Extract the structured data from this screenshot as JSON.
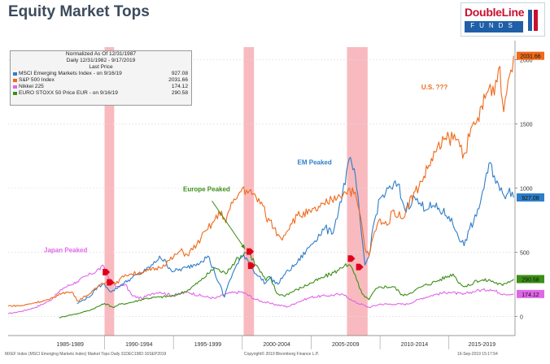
{
  "page_title": "Equity Market Tops",
  "logo": {
    "name": "DoubleLine",
    "tagline": "FUNDS"
  },
  "legend": {
    "header_lines": [
      "Normalized As Of 12/31/1987",
      "Daily 12/31/1982 - 9/17/2019",
      "Last Price"
    ],
    "items": [
      {
        "label": "MSCI Emerging Markets Index -  on 9/16/19",
        "value": "927.08",
        "color": "#2e7dc8"
      },
      {
        "label": "S&P 500 Index",
        "value": "2031.66",
        "color": "#ef6a1b"
      },
      {
        "label": "Nikkei 225",
        "value": "174.12",
        "color": "#e066e8"
      },
      {
        "label": "EURO STOXX 50 Price EUR -  on 9/16/19",
        "value": "290.58",
        "color": "#3b8f16"
      }
    ]
  },
  "footer": {
    "left": "MXEF Index (MSCI Emerging Markets Index) Market Tops  Daily 31DEC1982-16SEP2019",
    "center": "Copyright© 2019 Bloomberg Finance L.P.",
    "right": "16-Sep-2019 15:17:54"
  },
  "chart_data": {
    "type": "line",
    "title": "Equity Market Tops",
    "xlim": [
      1983,
      2019.8
    ],
    "ylim": [
      -150,
      2150
    ],
    "y_ticks": [
      0,
      500,
      1000,
      1500,
      2000
    ],
    "y_tick_labels": [
      "0",
      "500",
      "1000",
      "1500",
      "2000"
    ],
    "x_period_labels": [
      {
        "label": "1985-1989",
        "start": 1985,
        "end": 1990
      },
      {
        "label": "1990-1994",
        "start": 1990,
        "end": 1995
      },
      {
        "label": "1995-1999",
        "start": 1995,
        "end": 2000
      },
      {
        "label": "2000-2004",
        "start": 2000,
        "end": 2005
      },
      {
        "label": "2005-2009",
        "start": 2005,
        "end": 2010
      },
      {
        "label": "2010-2014",
        "start": 2010,
        "end": 2015
      },
      {
        "label": "2015-2019",
        "start": 2015,
        "end": 2020
      }
    ],
    "x_period_dividers": [
      1990,
      1995,
      2000,
      2005,
      2010,
      2015
    ],
    "shaded_bands": [
      {
        "start": 1990.0,
        "end": 1990.7
      },
      {
        "start": 2000.1,
        "end": 2000.85
      },
      {
        "start": 2007.6,
        "end": 2009.1
      }
    ],
    "peak_markers": [
      {
        "x": 1990.1,
        "y": 345
      },
      {
        "x": 1990.4,
        "y": 265
      },
      {
        "x": 2000.55,
        "y": 505
      },
      {
        "x": 2000.65,
        "y": 395
      },
      {
        "x": 2007.9,
        "y": 450
      },
      {
        "x": 2008.5,
        "y": 385
      }
    ],
    "annotations": [
      {
        "text": "Japan Peaked",
        "x": 1985.6,
        "y": 500,
        "color": "#e066e8"
      },
      {
        "text": "Europe Peaked",
        "x": 1995.7,
        "y": 975,
        "color": "#3b8f16"
      },
      {
        "text": "EM Peaked",
        "x": 2004.0,
        "y": 1185,
        "color": "#2e7dc8"
      },
      {
        "text": "U.S. ???",
        "x": 2013.0,
        "y": 1770,
        "color": "#ef6a1b"
      }
    ],
    "arrow": {
      "from": [
        1997.8,
        900
      ],
      "to": [
        2000.2,
        525
      ],
      "color": "#3b8f16"
    },
    "series": [
      {
        "name": "S&P 500 Index",
        "color": "#ef6a1b",
        "last_value": 2031.66,
        "x": [
          1983.0,
          1984.0,
          1985.0,
          1986.0,
          1987.0,
          1987.7,
          1988.0,
          1989.0,
          1989.8,
          1990.4,
          1990.8,
          1991.5,
          1992.0,
          1993.0,
          1994.0,
          1995.0,
          1995.5,
          1996.0,
          1996.7,
          1997.0,
          1997.5,
          1998.0,
          1998.5,
          1998.8,
          1999.0,
          1999.5,
          2000.0,
          2000.3,
          2000.7,
          2001.0,
          2001.5,
          2001.7,
          2002.0,
          2002.6,
          2002.8,
          2003.0,
          2003.5,
          2004.0,
          2005.0,
          2006.0,
          2006.5,
          2007.0,
          2007.5,
          2007.8,
          2008.3,
          2008.7,
          2008.9,
          2009.2,
          2009.5,
          2010.0,
          2010.5,
          2011.0,
          2011.6,
          2012.0,
          2013.0,
          2014.0,
          2015.0,
          2015.6,
          2016.1,
          2016.5,
          2017.0,
          2018.0,
          2018.1,
          2018.7,
          2018.98,
          2019.3,
          2019.7
        ],
        "y": [
          82,
          83,
          108,
          130,
          187,
          185,
          121,
          180,
          260,
          285,
          250,
          325,
          330,
          350,
          380,
          460,
          510,
          480,
          560,
          610,
          680,
          750,
          820,
          730,
          820,
          910,
          1000,
          985,
          950,
          930,
          860,
          780,
          745,
          640,
          610,
          630,
          720,
          785,
          810,
          870,
          910,
          950,
          965,
          1000,
          915,
          700,
          530,
          470,
          620,
          760,
          710,
          830,
          760,
          870,
          1050,
          1280,
          1400,
          1380,
          1270,
          1400,
          1510,
          1810,
          1720,
          1950,
          1595,
          1840,
          2031.66
        ]
      },
      {
        "name": "MSCI Emerging Markets Index",
        "color": "#2e7dc8",
        "last_value": 927.08,
        "x": [
          1988.0,
          1989.0,
          1989.5,
          1990.0,
          1990.5,
          1991.0,
          1992.0,
          1993.0,
          1993.7,
          1994.0,
          1995.0,
          1996.0,
          1997.0,
          1997.5,
          1998.0,
          1998.7,
          1999.0,
          1999.5,
          2000.1,
          2000.6,
          2001.0,
          2001.7,
          2002.0,
          2002.6,
          2003.0,
          2004.0,
          2005.0,
          2006.0,
          2006.5,
          2007.0,
          2007.85,
          2008.3,
          2008.7,
          2008.9,
          2009.2,
          2009.5,
          2010.0,
          2010.8,
          2011.3,
          2011.8,
          2012.5,
          2013.0,
          2014.0,
          2015.0,
          2015.6,
          2016.1,
          2016.5,
          2017.0,
          2018.0,
          2018.7,
          2019.0,
          2019.4,
          2019.7
        ],
        "y": [
          100,
          160,
          230,
          250,
          190,
          230,
          300,
          360,
          420,
          470,
          350,
          380,
          430,
          470,
          340,
          150,
          260,
          380,
          480,
          420,
          330,
          260,
          300,
          250,
          320,
          420,
          560,
          690,
          640,
          830,
          1240,
          1000,
          600,
          400,
          470,
          700,
          920,
          1000,
          1030,
          830,
          930,
          860,
          850,
          780,
          650,
          550,
          680,
          780,
          1200,
          980,
          940,
          1000,
          927.08
        ]
      },
      {
        "name": "EURO STOXX 50 Price EUR",
        "color": "#3b8f16",
        "last_value": 290.58,
        "x": [
          1986.7,
          1987.5,
          1988.0,
          1989.0,
          1990.0,
          1990.7,
          1991.0,
          1992.0,
          1993.0,
          1994.0,
          1995.0,
          1996.0,
          1997.0,
          1998.0,
          1998.8,
          1999.0,
          1999.5,
          2000.2,
          2000.6,
          2001.0,
          2001.7,
          2002.0,
          2002.5,
          2003.0,
          2004.0,
          2005.0,
          2006.0,
          2007.0,
          2007.5,
          2008.0,
          2008.5,
          2008.9,
          2009.2,
          2009.6,
          2010.0,
          2011.0,
          2011.7,
          2012.5,
          2013.0,
          2014.0,
          2015.3,
          2015.8,
          2016.1,
          2016.5,
          2017.0,
          2018.0,
          2018.9,
          2019.3,
          2019.7
        ],
        "y": [
          -10,
          10,
          20,
          50,
          100,
          70,
          90,
          110,
          140,
          150,
          160,
          200,
          280,
          380,
          330,
          370,
          430,
          500,
          480,
          400,
          280,
          310,
          180,
          160,
          210,
          260,
          310,
          360,
          410,
          370,
          220,
          150,
          130,
          200,
          230,
          230,
          160,
          200,
          230,
          270,
          330,
          260,
          230,
          240,
          280,
          280,
          240,
          270,
          290.58
        ]
      },
      {
        "name": "Nikkei 225",
        "color": "#e066e8",
        "last_value": 174.12,
        "x": [
          1983.0,
          1984.0,
          1985.0,
          1986.0,
          1987.0,
          1988.0,
          1989.0,
          1989.95,
          1990.3,
          1990.8,
          1991.5,
          1992.0,
          1992.7,
          1993.5,
          1994.0,
          1995.0,
          1996.0,
          1997.0,
          1998.0,
          1999.0,
          2000.0,
          2001.0,
          2002.0,
          2003.3,
          2004.0,
          2005.0,
          2006.0,
          2007.0,
          2007.5,
          2008.0,
          2009.2,
          2010.0,
          2011.0,
          2012.0,
          2013.0,
          2014.0,
          2015.0,
          2016.0,
          2017.0,
          2018.0,
          2019.0,
          2019.7
        ],
        "y": [
          20,
          40,
          70,
          120,
          220,
          270,
          330,
          390,
          300,
          230,
          250,
          160,
          140,
          180,
          190,
          160,
          190,
          160,
          140,
          180,
          190,
          130,
          100,
          75,
          110,
          150,
          160,
          170,
          165,
          120,
          70,
          95,
          95,
          95,
          140,
          170,
          190,
          170,
          200,
          210,
          175,
          174.12
        ]
      }
    ]
  }
}
